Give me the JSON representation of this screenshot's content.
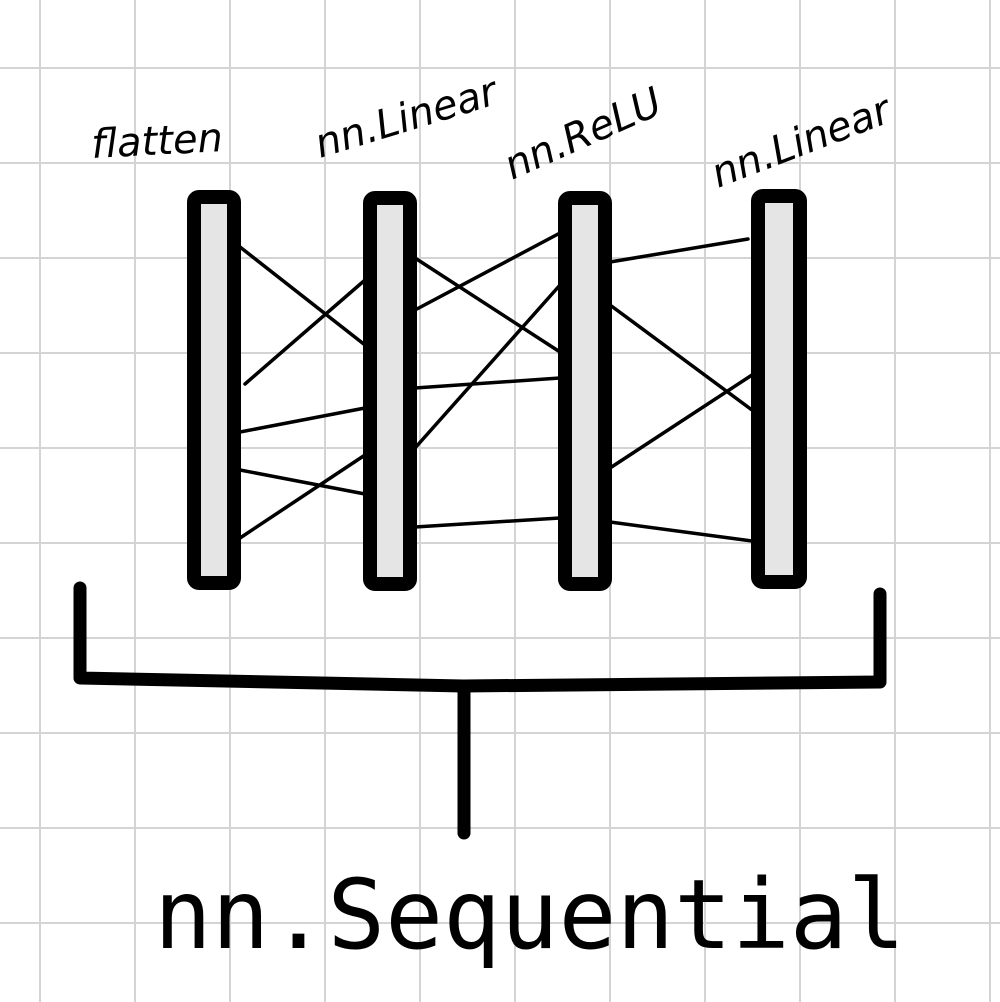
{
  "layers": [
    {
      "label": "flatten"
    },
    {
      "label": "nn.Linear"
    },
    {
      "label": "nn.ReLU"
    },
    {
      "label": "nn.Linear"
    }
  ],
  "container_label": "nn.Sequential",
  "colors": {
    "background": "#ffffff",
    "grid": "#d4d4d4",
    "stroke": "#000000",
    "layer_fill": "#e5e5e5"
  }
}
